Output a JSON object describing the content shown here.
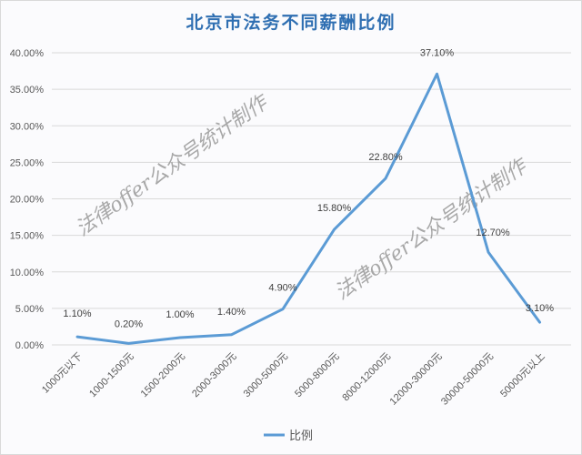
{
  "chart_data": {
    "type": "line",
    "title": "北京市法务不同薪酬比例",
    "xlabel": "",
    "ylabel": "",
    "categories": [
      "1000元以下",
      "1000-1500元",
      "1500-2000元",
      "2000-3000元",
      "3000-5000元",
      "5000-8000元",
      "8000-12000元",
      "12000-30000元",
      "30000-50000元",
      "50000元以上"
    ],
    "series": [
      {
        "name": "比例",
        "values": [
          1.1,
          0.2,
          1.0,
          1.4,
          4.9,
          15.8,
          22.8,
          37.1,
          12.7,
          3.1
        ],
        "color": "#5b9bd5"
      }
    ],
    "data_labels": [
      "1.10%",
      "0.20%",
      "1.00%",
      "1.40%",
      "4.90%",
      "15.80%",
      "22.80%",
      "37.10%",
      "12.70%",
      "3.10%"
    ],
    "y_ticks": [
      "0.00%",
      "5.00%",
      "10.00%",
      "15.00%",
      "20.00%",
      "25.00%",
      "30.00%",
      "35.00%",
      "40.00%"
    ],
    "ylim": [
      0,
      40
    ],
    "grid": true,
    "legend_position": "bottom",
    "watermarks": [
      "法律offer公众号统计制作",
      "法律offer公众号统计制作"
    ]
  },
  "legend": {
    "label": "比例"
  }
}
